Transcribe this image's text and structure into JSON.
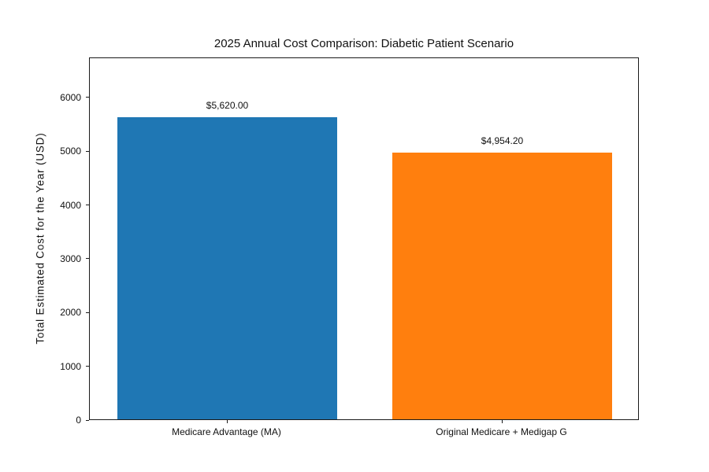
{
  "figure": {
    "background": "#ffffff",
    "text_color": "#111111",
    "spine_color": "#1a1a1a"
  },
  "chart_data": {
    "type": "bar",
    "title": "2025 Annual Cost Comparison: Diabetic Patient Scenario",
    "xlabel": "",
    "ylabel": "Total Estimated Cost for the Year (USD)",
    "categories": [
      "Medicare Advantage (MA)",
      "Original Medicare + Medigap G"
    ],
    "values": [
      5620.0,
      4954.2
    ],
    "value_labels": [
      "$5,620.00",
      "$4,954.20"
    ],
    "bar_colors": [
      "#1f77b4",
      "#ff7f0e"
    ],
    "ylim": [
      0,
      6744
    ],
    "yticks": [
      0,
      1000,
      2000,
      3000,
      4000,
      5000,
      6000
    ],
    "bar_width_fraction": 0.8,
    "grid": false,
    "legend": null
  }
}
